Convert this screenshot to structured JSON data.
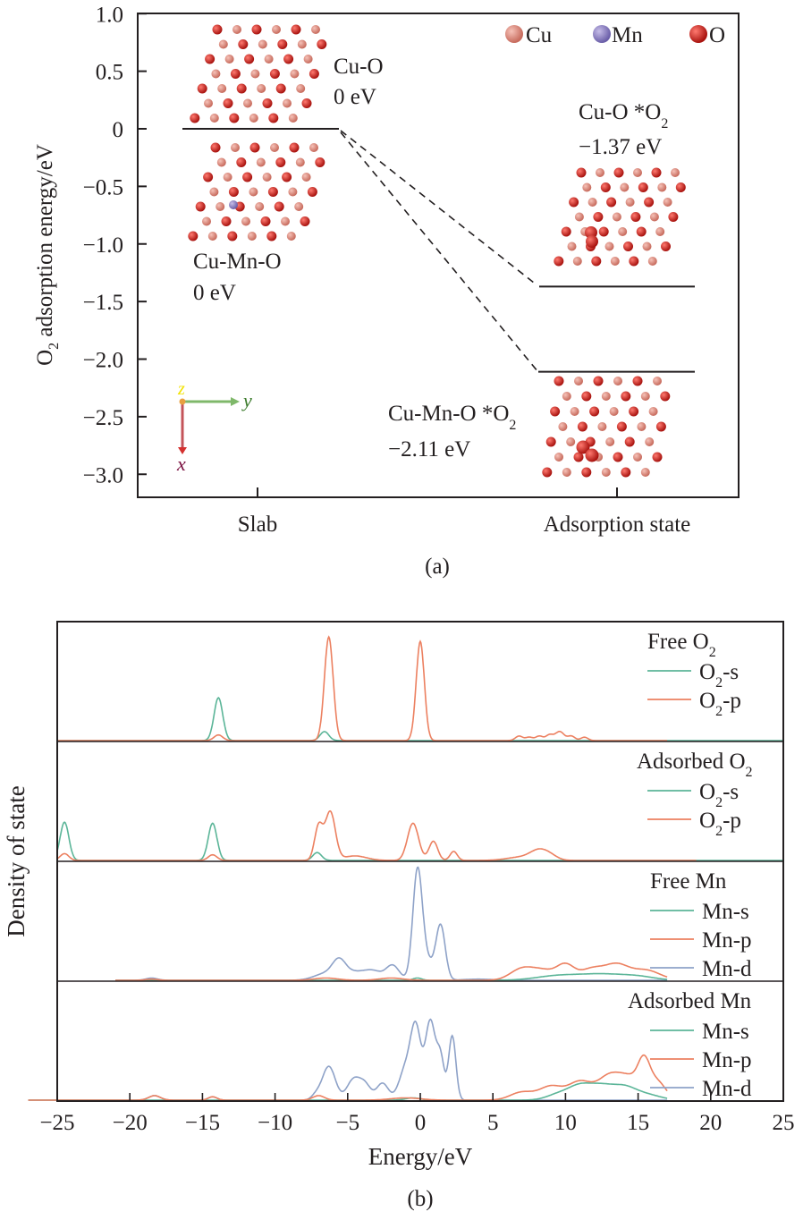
{
  "chart_data": [
    {
      "panel": "(a)",
      "type": "energy-level diagram",
      "title": "",
      "xlabel": "",
      "ylabel": "O2 adsorption energy/eV",
      "ylabel_parts": {
        "pre": "O",
        "sub": "2",
        "post": " adsorption energy/eV"
      },
      "ylim": [
        -3.2,
        1.0
      ],
      "yticks": [
        1.0,
        0.5,
        0,
        -0.5,
        -1.0,
        -1.5,
        -2.0,
        -2.5,
        -3.0
      ],
      "ytick_labels": [
        "1.0",
        "0.5",
        "0",
        "−0.5",
        "−1.0",
        "−1.5",
        "−2.0",
        "−2.5",
        "−3.0"
      ],
      "categories": [
        "Slab",
        "Adsorption state"
      ],
      "levels": [
        {
          "name": "Cu-O",
          "state": "Slab",
          "value": 0,
          "label": "Cu-O",
          "value_label": "0 eV"
        },
        {
          "name": "Cu-Mn-O",
          "state": "Slab",
          "value": 0,
          "label": "Cu-Mn-O",
          "value_label": "0 eV"
        },
        {
          "name": "Cu-O *O2",
          "state": "Adsorption state",
          "value": -1.37,
          "label_pre": "Cu-O *O",
          "label_sub": "2",
          "value_label": "−1.37 eV"
        },
        {
          "name": "Cu-Mn-O *O2",
          "state": "Adsorption state",
          "value": -2.11,
          "label_pre": "Cu-Mn-O *O",
          "label_sub": "2",
          "value_label": "−2.11 eV"
        }
      ],
      "connectors": [
        {
          "from": "Cu-O",
          "to": "Cu-O *O2",
          "style": "dashed"
        },
        {
          "from": "Cu-Mn-O",
          "to": "Cu-Mn-O *O2",
          "style": "dashed"
        }
      ],
      "legend": {
        "placement": "top-right",
        "entries": [
          {
            "label": "Cu",
            "color": "#e8877a"
          },
          {
            "label": "Mn",
            "color": "#8a7fc0"
          },
          {
            "label": "O",
            "color": "#d8201c"
          }
        ]
      },
      "axes_indicator": {
        "x": "x",
        "y": "y",
        "z": "z",
        "x_color": "#7a1040",
        "y_color": "#3a7a2a",
        "z_color": "#f2e200"
      },
      "caption": "(a)"
    },
    {
      "panel": "(b)",
      "type": "line",
      "title": "",
      "xlabel": "Energy/eV",
      "ylabel": "Density of state",
      "xlim": [
        -25,
        25
      ],
      "xticks": [
        -25,
        -20,
        -15,
        -10,
        -5,
        0,
        5,
        10,
        15,
        20,
        25
      ],
      "xtick_labels": [
        "−25",
        "−20",
        "−15",
        "−10",
        "−5",
        "0",
        "5",
        "10",
        "15",
        "20",
        "25"
      ],
      "grid": false,
      "colors": {
        "s": "#5bb598",
        "p": "#ec8060",
        "d": "#8ea2c8"
      },
      "subplots": [
        {
          "title_pre": "Free O",
          "title_sub": "2",
          "legend": [
            {
              "pre": "O",
              "sub": "2",
              "post": "-s",
              "key": "s"
            },
            {
              "pre": "O",
              "sub": "2",
              "post": "-p",
              "key": "p"
            }
          ],
          "series": [
            {
              "name": "O2-s",
              "key": "s",
              "peaks": [
                [
                  -13.9,
                  0.38,
                  0.3
                ],
                [
                  -6.6,
                  0.08,
                  0.3
                ]
              ]
            },
            {
              "name": "O2-p",
              "key": "p",
              "peaks": [
                [
                  -13.9,
                  0.05,
                  0.3
                ],
                [
                  -6.3,
                  0.92,
                  0.3
                ],
                [
                  0.0,
                  0.88,
                  0.28
                ],
                [
                  6.8,
                  0.04,
                  0.25
                ],
                [
                  7.5,
                  0.03,
                  0.25
                ],
                [
                  8.2,
                  0.04,
                  0.25
                ],
                [
                  8.9,
                  0.05,
                  0.25
                ],
                [
                  9.6,
                  0.08,
                  0.3
                ],
                [
                  10.4,
                  0.04,
                  0.25
                ],
                [
                  11.3,
                  0.03,
                  0.25
                ]
              ],
              "range": [
                -25,
                17.0
              ]
            }
          ]
        },
        {
          "title_pre": "Adsorbed O",
          "title_sub": "2",
          "legend": [
            {
              "pre": "O",
              "sub": "2",
              "post": "-s",
              "key": "s"
            },
            {
              "pre": "O",
              "sub": "2",
              "post": "-p",
              "key": "p"
            }
          ],
          "series": [
            {
              "name": "O2-s",
              "key": "s",
              "peaks": [
                [
                  -24.5,
                  0.34,
                  0.3
                ],
                [
                  -14.3,
                  0.33,
                  0.3
                ],
                [
                  -7.1,
                  0.07,
                  0.3
                ]
              ]
            },
            {
              "name": "O2-p",
              "key": "p",
              "peaks": [
                [
                  -24.5,
                  0.06,
                  0.3
                ],
                [
                  -14.3,
                  0.05,
                  0.3
                ],
                [
                  -7.0,
                  0.3,
                  0.28
                ],
                [
                  -6.2,
                  0.43,
                  0.35
                ],
                [
                  -4.5,
                  0.04,
                  0.8
                ],
                [
                  -0.5,
                  0.33,
                  0.38
                ],
                [
                  0.9,
                  0.17,
                  0.3
                ],
                [
                  2.3,
                  0.08,
                  0.25
                ],
                [
                  7.0,
                  0.03,
                  1.0
                ],
                [
                  8.2,
                  0.08,
                  0.6
                ],
                [
                  9.0,
                  0.03,
                  0.5
                ]
              ],
              "range": [
                -25,
                19.0
              ]
            }
          ]
        },
        {
          "title_pre": "Free Mn",
          "title_sub": "",
          "legend": [
            {
              "pre": "Mn-s",
              "sub": "",
              "post": "",
              "key": "s"
            },
            {
              "pre": "Mn-p",
              "sub": "",
              "post": "",
              "key": "p"
            },
            {
              "pre": "Mn-d",
              "sub": "",
              "post": "",
              "key": "d"
            }
          ],
          "series": [
            {
              "name": "Mn-s",
              "key": "s",
              "peaks": [
                [
                  -0.2,
                  0.02,
                  0.3
                ],
                [
                  9.5,
                  0.04,
                  1.5
                ],
                [
                  12.5,
                  0.05,
                  1.5
                ],
                [
                  15.0,
                  0.03,
                  1.2
                ]
              ],
              "range": [
                -21,
                17.0
              ]
            },
            {
              "name": "Mn-p",
              "key": "p",
              "peaks": [
                [
                  -18.5,
                  0.01,
                  0.4
                ],
                [
                  -6.5,
                  0.02,
                  0.8
                ],
                [
                  -2.0,
                  0.02,
                  0.8
                ],
                [
                  7.0,
                  0.1,
                  0.8
                ],
                [
                  8.5,
                  0.08,
                  0.8
                ],
                [
                  10.0,
                  0.13,
                  0.6
                ],
                [
                  11.8,
                  0.1,
                  0.8
                ],
                [
                  13.5,
                  0.13,
                  0.8
                ],
                [
                  15.5,
                  0.09,
                  1.0
                ]
              ],
              "range": [
                -21,
                17.0
              ]
            },
            {
              "name": "Mn-d",
              "key": "d",
              "peaks": [
                [
                  -18.5,
                  0.02,
                  0.4
                ],
                [
                  -6.5,
                  0.06,
                  0.8
                ],
                [
                  -5.6,
                  0.14,
                  0.45
                ],
                [
                  -4.5,
                  0.07,
                  0.8
                ],
                [
                  -3.2,
                  0.07,
                  0.6
                ],
                [
                  -1.9,
                  0.13,
                  0.45
                ],
                [
                  -0.2,
                  0.88,
                  0.32
                ],
                [
                  0.3,
                  0.2,
                  0.5
                ],
                [
                  1.4,
                  0.48,
                  0.32
                ],
                [
                  4.0,
                  0.01,
                  1.0
                ]
              ],
              "range": [
                -21,
                17.0
              ]
            }
          ]
        },
        {
          "title_pre": "Adsorbed Mn",
          "title_sub": "",
          "legend": [
            {
              "pre": "Mn-s",
              "sub": "",
              "post": "",
              "key": "s"
            },
            {
              "pre": "Mn-p",
              "sub": "",
              "post": "",
              "key": "p"
            },
            {
              "pre": "Mn-d",
              "sub": "",
              "post": "",
              "key": "d"
            }
          ],
          "series": [
            {
              "name": "Mn-s",
              "key": "s",
              "peaks": [
                [
                  -0.5,
                  0.02,
                  0.5
                ],
                [
                  9.5,
                  0.05,
                  0.8
                ],
                [
                  11.0,
                  0.12,
                  0.8
                ],
                [
                  12.5,
                  0.11,
                  0.8
                ],
                [
                  14.0,
                  0.1,
                  0.8
                ],
                [
                  15.5,
                  0.05,
                  1.0
                ]
              ],
              "range": [
                -27,
                17.0
              ]
            },
            {
              "name": "Mn-p",
              "key": "p",
              "peaks": [
                [
                  -18.3,
                  0.04,
                  0.4
                ],
                [
                  -14.3,
                  0.03,
                  0.3
                ],
                [
                  -7.0,
                  0.04,
                  0.4
                ],
                [
                  -1.0,
                  0.02,
                  1.0
                ],
                [
                  7.0,
                  0.07,
                  0.8
                ],
                [
                  9.0,
                  0.12,
                  0.8
                ],
                [
                  11.0,
                  0.16,
                  0.8
                ],
                [
                  13.0,
                  0.2,
                  0.8
                ],
                [
                  14.5,
                  0.18,
                  0.8
                ],
                [
                  15.4,
                  0.25,
                  0.4
                ],
                [
                  16.3,
                  0.16,
                  0.6
                ]
              ],
              "range": [
                -27,
                17.0
              ]
            },
            {
              "name": "Mn-d",
              "key": "d",
              "peaks": [
                [
                  -18.3,
                  0.04,
                  0.4
                ],
                [
                  -14.3,
                  0.03,
                  0.3
                ],
                [
                  -7.2,
                  0.04,
                  0.3
                ],
                [
                  -6.3,
                  0.3,
                  0.45
                ],
                [
                  -4.6,
                  0.18,
                  0.45
                ],
                [
                  -3.8,
                  0.13,
                  0.4
                ],
                [
                  -2.6,
                  0.15,
                  0.4
                ],
                [
                  -1.0,
                  0.28,
                  0.45
                ],
                [
                  -0.3,
                  0.6,
                  0.35
                ],
                [
                  0.7,
                  0.7,
                  0.35
                ],
                [
                  1.4,
                  0.35,
                  0.25
                ],
                [
                  2.2,
                  0.57,
                  0.25
                ]
              ],
              "range": [
                -27,
                17.0
              ]
            }
          ]
        }
      ],
      "caption": "(b)"
    }
  ]
}
